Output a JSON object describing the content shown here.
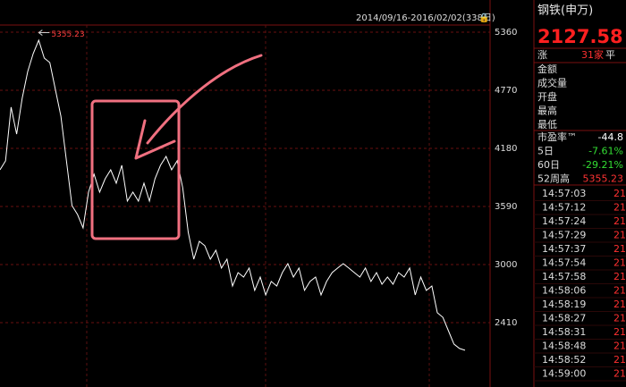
{
  "chart_data": {
    "type": "line",
    "range_label": "2014/09/16-2016/02/02(338日)",
    "peak": 5355.23,
    "series": [
      {
        "color": "#ffffff",
        "values": [
          3962,
          4053,
          4598,
          4325,
          4688,
          4961,
          5142,
          5278,
          5097,
          5051,
          4779,
          4507,
          4053,
          3599,
          3508,
          3372,
          3735,
          3917,
          3735,
          3871,
          3962,
          3826,
          4008,
          3644,
          3735,
          3644,
          3826,
          3644,
          3871,
          4008,
          4098,
          3962,
          4053,
          3781,
          3327,
          3054,
          3236,
          3191,
          3054,
          3145,
          2964,
          3054,
          2782,
          2918,
          2873,
          2964,
          2737,
          2873,
          2691,
          2828,
          2782,
          2918,
          3009,
          2873,
          2964,
          2737,
          2828,
          2873,
          2691,
          2828,
          2918,
          2964,
          3009,
          2964,
          2918,
          2873,
          2964,
          2828,
          2918,
          2800,
          2873,
          2800,
          2918,
          2873,
          2964,
          2691,
          2873,
          2737,
          2782,
          2510,
          2464,
          2328,
          2192,
          2147,
          2129
        ]
      }
    ],
    "ylim": [
      1756,
      5578
    ],
    "yticks": [
      5360,
      4770,
      4180,
      3590,
      3000,
      2410
    ]
  },
  "panel": {
    "name": "钢铁(申万)",
    "price": "2127.58",
    "breadth": [
      "涨",
      "31家",
      "平"
    ],
    "fields": [
      "金额",
      "成交量",
      "开盘",
      "最高",
      "最低"
    ],
    "stats": [
      {
        "label": "市盈率™",
        "value": "-44.8",
        "color": "#ffffff"
      },
      {
        "label": "5日",
        "value": "-7.61%",
        "color": "#33dd33"
      },
      {
        "label": "60日",
        "value": "-29.21%",
        "color": "#33dd33"
      },
      {
        "label": "52周高",
        "value": "5355.23",
        "color": "#ff3333"
      }
    ],
    "ticks": [
      {
        "time": "14:57:03",
        "price": "21"
      },
      {
        "time": "14:57:12",
        "price": "21"
      },
      {
        "time": "14:57:24",
        "price": "21"
      },
      {
        "time": "14:57:29",
        "price": "21"
      },
      {
        "time": "14:57:37",
        "price": "21"
      },
      {
        "time": "14:57:54",
        "price": "21"
      },
      {
        "time": "14:57:58",
        "price": "21"
      },
      {
        "time": "14:58:06",
        "price": "21"
      },
      {
        "time": "14:58:19",
        "price": "21"
      },
      {
        "time": "14:58:27",
        "price": "21"
      },
      {
        "time": "14:58:31",
        "price": "21"
      },
      {
        "time": "14:58:48",
        "price": "21"
      },
      {
        "time": "14:58:52",
        "price": "21"
      },
      {
        "time": "14:59:00",
        "price": "21"
      }
    ]
  }
}
